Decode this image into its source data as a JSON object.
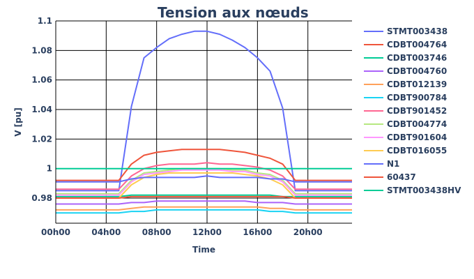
{
  "chart_data": {
    "type": "line",
    "title": "Tension aux nœuds",
    "xlabel": "Time",
    "ylabel": "V [pu]",
    "xlim": [
      0,
      23.5
    ],
    "ylim": [
      0.963,
      1.1
    ],
    "x_ticks": [
      0,
      4,
      8,
      12,
      16,
      20
    ],
    "x_tick_labels": [
      "00h00",
      "04h00",
      "08h00",
      "12h00",
      "16h00",
      "20h00"
    ],
    "y_ticks": [
      0.98,
      1.0,
      1.02,
      1.04,
      1.06,
      1.08,
      1.1
    ],
    "y_tick_labels": [
      "0.98",
      "1",
      "1.02",
      "1.04",
      "1.06",
      "1.08",
      "1.1"
    ],
    "grid": true,
    "legend_position": "right",
    "x": [
      0,
      1,
      2,
      3,
      4,
      5,
      6,
      7,
      8,
      9,
      10,
      11,
      12,
      13,
      14,
      15,
      16,
      17,
      18,
      19,
      20,
      21,
      22,
      23,
      23.5
    ],
    "series": [
      {
        "name": "STMT003438",
        "color": "#636efa",
        "values": [
          0.985,
          0.985,
          0.985,
          0.985,
          0.985,
          0.985,
          1.042,
          1.075,
          1.082,
          1.088,
          1.091,
          1.093,
          1.093,
          1.091,
          1.087,
          1.082,
          1.075,
          1.066,
          1.041,
          0.985,
          0.985,
          0.985,
          0.985,
          0.985,
          0.985
        ]
      },
      {
        "name": "CDBT004764",
        "color": "#ef553b",
        "values": [
          0.992,
          0.992,
          0.992,
          0.992,
          0.992,
          0.992,
          1.003,
          1.009,
          1.011,
          1.012,
          1.013,
          1.013,
          1.013,
          1.013,
          1.012,
          1.011,
          1.009,
          1.007,
          1.003,
          0.992,
          0.992,
          0.992,
          0.992,
          0.992,
          0.992
        ]
      },
      {
        "name": "CDBT003746",
        "color": "#00cc96",
        "values": [
          0.981,
          0.981,
          0.981,
          0.981,
          0.981,
          0.981,
          0.982,
          0.982,
          0.982,
          0.982,
          0.982,
          0.982,
          0.982,
          0.982,
          0.982,
          0.982,
          0.982,
          0.982,
          0.981,
          0.981,
          0.981,
          0.981,
          0.981,
          0.981,
          0.981
        ]
      },
      {
        "name": "CDBT004760",
        "color": "#ab63fa",
        "values": [
          0.976,
          0.976,
          0.976,
          0.976,
          0.976,
          0.976,
          0.977,
          0.977,
          0.978,
          0.978,
          0.978,
          0.978,
          0.978,
          0.978,
          0.978,
          0.978,
          0.977,
          0.977,
          0.977,
          0.976,
          0.976,
          0.976,
          0.976,
          0.976,
          0.976
        ]
      },
      {
        "name": "CDBT012139",
        "color": "#ffa15a",
        "values": [
          0.972,
          0.972,
          0.972,
          0.972,
          0.972,
          0.972,
          0.973,
          0.974,
          0.974,
          0.974,
          0.974,
          0.974,
          0.974,
          0.974,
          0.974,
          0.974,
          0.974,
          0.973,
          0.973,
          0.972,
          0.972,
          0.972,
          0.972,
          0.972,
          0.972
        ]
      },
      {
        "name": "CDBT900784",
        "color": "#19d3f3",
        "values": [
          0.97,
          0.97,
          0.97,
          0.97,
          0.97,
          0.97,
          0.971,
          0.971,
          0.972,
          0.972,
          0.972,
          0.972,
          0.972,
          0.972,
          0.972,
          0.972,
          0.972,
          0.971,
          0.971,
          0.97,
          0.97,
          0.97,
          0.97,
          0.97,
          0.97
        ]
      },
      {
        "name": "CDBT901452",
        "color": "#ff6692",
        "values": [
          0.986,
          0.986,
          0.986,
          0.986,
          0.986,
          0.986,
          0.995,
          1.0,
          1.002,
          1.003,
          1.003,
          1.003,
          1.004,
          1.003,
          1.003,
          1.002,
          1.001,
          0.999,
          0.995,
          0.986,
          0.986,
          0.986,
          0.986,
          0.986,
          0.986
        ]
      },
      {
        "name": "CDBT004774",
        "color": "#b6e880",
        "values": [
          0.983,
          0.983,
          0.983,
          0.983,
          0.983,
          0.983,
          0.992,
          0.997,
          0.998,
          0.999,
          1.0,
          1.0,
          1.0,
          1.0,
          0.999,
          0.999,
          0.997,
          0.996,
          0.992,
          0.983,
          0.983,
          0.983,
          0.983,
          0.983,
          0.983
        ]
      },
      {
        "name": "CDBT901604",
        "color": "#ff97ff",
        "values": [
          0.982,
          0.982,
          0.982,
          0.982,
          0.982,
          0.982,
          0.991,
          0.996,
          0.997,
          0.998,
          0.999,
          0.999,
          0.999,
          0.999,
          0.998,
          0.998,
          0.996,
          0.995,
          0.991,
          0.982,
          0.982,
          0.982,
          0.982,
          0.982,
          0.982
        ]
      },
      {
        "name": "CDBT016055",
        "color": "#fecb52",
        "values": [
          0.98,
          0.98,
          0.98,
          0.98,
          0.98,
          0.98,
          0.989,
          0.994,
          0.996,
          0.997,
          0.997,
          0.997,
          0.997,
          0.997,
          0.997,
          0.996,
          0.995,
          0.993,
          0.989,
          0.98,
          0.98,
          0.98,
          0.98,
          0.98,
          0.98
        ]
      },
      {
        "name": "N1",
        "color": "#636efa",
        "values": [
          0.991,
          0.991,
          0.991,
          0.991,
          0.991,
          0.991,
          0.993,
          0.994,
          0.994,
          0.994,
          0.994,
          0.994,
          0.995,
          0.994,
          0.994,
          0.994,
          0.994,
          0.993,
          0.993,
          0.991,
          0.991,
          0.991,
          0.991,
          0.991,
          0.991
        ]
      },
      {
        "name": "60437",
        "color": "#ef553b",
        "values": [
          0.98,
          0.98,
          0.98,
          0.98,
          0.98,
          0.98,
          0.981,
          0.981,
          0.981,
          0.981,
          0.981,
          0.981,
          0.981,
          0.981,
          0.981,
          0.981,
          0.981,
          0.981,
          0.981,
          0.98,
          0.98,
          0.98,
          0.98,
          0.98,
          0.98
        ]
      },
      {
        "name": "STMT003438HV",
        "color": "#00cc96",
        "values": [
          1.0,
          1.0,
          1.0,
          1.0,
          1.0,
          1.0,
          1.0,
          1.0,
          1.0,
          1.0,
          1.0,
          1.0,
          1.0,
          1.0,
          1.0,
          1.0,
          1.0,
          1.0,
          1.0,
          1.0,
          1.0,
          1.0,
          1.0,
          1.0,
          1.0
        ]
      }
    ]
  }
}
